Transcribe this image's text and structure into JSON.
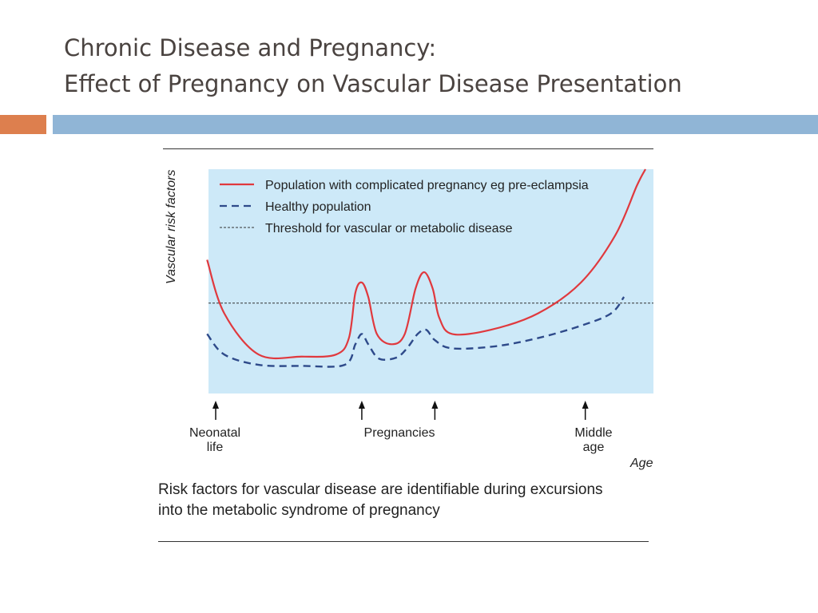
{
  "slide": {
    "title_line1": "Chronic Disease and Pregnancy:",
    "title_line2": "Effect of Pregnancy on Vascular Disease Presentation",
    "accent_colors": {
      "orange": "#dd7f4e",
      "blue": "#90b5d6"
    }
  },
  "figure": {
    "caption_line1": "Risk factors for vascular disease are identifiable during excursions",
    "caption_line2": "into the metabolic syndrome of pregnancy"
  },
  "chart_data": {
    "type": "line",
    "ylabel": "Vascular risk factors",
    "xlabel": "Age",
    "background_color": "#cde9f8",
    "grid": false,
    "legend_position": "top-left",
    "legend": [
      {
        "label": "Population with complicated pregnancy eg pre-eclampsia",
        "style": "solid",
        "color": "#e0393e"
      },
      {
        "label": "Healthy population",
        "style": "dashed",
        "color": "#2e4a8a"
      },
      {
        "label": "Threshold for vascular or metabolic disease",
        "style": "dotted",
        "color": "#333333"
      }
    ],
    "markers": [
      {
        "x": 0,
        "label": "Neonatal life"
      },
      {
        "x": 0.34,
        "label": "Pregnancies"
      },
      {
        "x": 0.51,
        "label": ""
      },
      {
        "x": 0.86,
        "label": "Middle age"
      }
    ],
    "threshold": 0.35,
    "series": [
      {
        "key": "complicated",
        "color": "#e0393e",
        "style": "solid",
        "points": [
          [
            -0.02,
            0.56
          ],
          [
            0.02,
            0.3
          ],
          [
            0.1,
            0.1
          ],
          [
            0.2,
            0.09
          ],
          [
            0.28,
            0.1
          ],
          [
            0.31,
            0.18
          ],
          [
            0.325,
            0.4
          ],
          [
            0.34,
            0.45
          ],
          [
            0.355,
            0.38
          ],
          [
            0.375,
            0.2
          ],
          [
            0.41,
            0.15
          ],
          [
            0.44,
            0.2
          ],
          [
            0.465,
            0.42
          ],
          [
            0.485,
            0.5
          ],
          [
            0.505,
            0.42
          ],
          [
            0.52,
            0.28
          ],
          [
            0.55,
            0.2
          ],
          [
            0.64,
            0.22
          ],
          [
            0.75,
            0.3
          ],
          [
            0.85,
            0.45
          ],
          [
            0.93,
            0.68
          ],
          [
            0.98,
            0.92
          ],
          [
            1.0,
            1.0
          ]
        ]
      },
      {
        "key": "healthy",
        "color": "#2e4a8a",
        "style": "dashed",
        "points": [
          [
            -0.02,
            0.2
          ],
          [
            0.02,
            0.1
          ],
          [
            0.1,
            0.05
          ],
          [
            0.2,
            0.045
          ],
          [
            0.3,
            0.05
          ],
          [
            0.325,
            0.15
          ],
          [
            0.34,
            0.2
          ],
          [
            0.355,
            0.15
          ],
          [
            0.38,
            0.08
          ],
          [
            0.42,
            0.085
          ],
          [
            0.445,
            0.13
          ],
          [
            0.47,
            0.2
          ],
          [
            0.49,
            0.22
          ],
          [
            0.51,
            0.17
          ],
          [
            0.55,
            0.13
          ],
          [
            0.65,
            0.14
          ],
          [
            0.75,
            0.18
          ],
          [
            0.85,
            0.24
          ],
          [
            0.92,
            0.3
          ],
          [
            0.95,
            0.38
          ]
        ]
      }
    ]
  }
}
